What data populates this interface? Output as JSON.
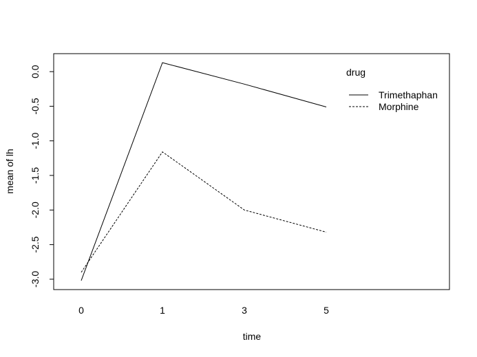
{
  "chart_data": {
    "type": "line",
    "title": "",
    "xlabel": "time",
    "ylabel": "mean of  lh",
    "categories": [
      "0",
      "1",
      "3",
      "5"
    ],
    "ylim": [
      -3.15,
      0.26
    ],
    "yticks": [
      -3.0,
      -2.5,
      -2.0,
      -1.5,
      -1.0,
      -0.5,
      0.0
    ],
    "ytick_labels": [
      "-3.0",
      "-2.5",
      "-2.0",
      "-1.5",
      "-1.0",
      "-0.5",
      "0.0"
    ],
    "grid": false,
    "legend": {
      "title": "drug",
      "position": "top-right",
      "entries": [
        "Trimethaphan",
        "Morphine"
      ]
    },
    "series": [
      {
        "name": "Trimethaphan",
        "line_style": "solid",
        "values": [
          -3.02,
          0.13,
          -0.18,
          -0.51
        ]
      },
      {
        "name": "Morphine",
        "line_style": "dashed",
        "values": [
          -2.9,
          -1.16,
          -2.0,
          -2.32
        ]
      }
    ],
    "colors": {
      "line": "#000000",
      "axis": "#000000",
      "background": "#ffffff"
    }
  }
}
